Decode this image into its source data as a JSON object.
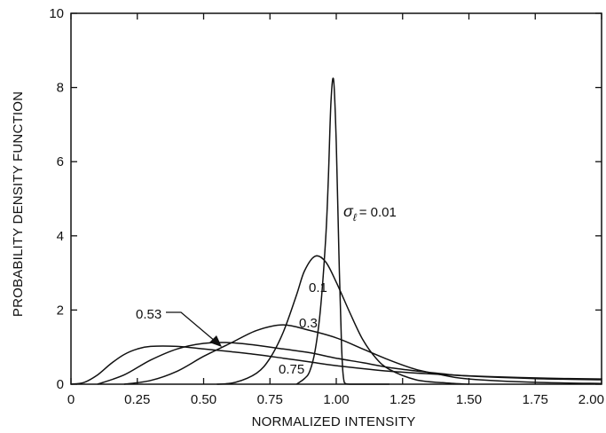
{
  "chart_data": {
    "type": "line",
    "title": "",
    "xlabel": "NORMALIZED INTENSITY",
    "ylabel": "PROBABILITY DENSITY FUNCTION",
    "xlim": [
      0,
      2.0
    ],
    "ylim": [
      0,
      10
    ],
    "x_ticks": [
      "0",
      "0.25",
      "0.50",
      "0.75",
      "1.00",
      "1.25",
      "1.50",
      "1.75",
      "2.00"
    ],
    "y_ticks": [
      "0",
      "2",
      "4",
      "6",
      "8",
      "10"
    ],
    "grid": false,
    "legend": "none",
    "annotation_prefix": "σ",
    "annotation_subscript": "ℓ",
    "series": [
      {
        "label": "= 0.01",
        "x": [
          0.85,
          0.88,
          0.9,
          0.92,
          0.94,
          0.96,
          0.97,
          0.98,
          0.99,
          1.0,
          1.01,
          1.02,
          1.03,
          1.05,
          1.1,
          1.2
        ],
        "y": [
          0.0,
          0.15,
          0.35,
          0.9,
          2.0,
          3.9,
          5.5,
          7.6,
          8.2,
          6.5,
          3.5,
          1.0,
          0.05,
          0.0,
          0.0,
          0.0
        ]
      },
      {
        "label": "0.1",
        "x": [
          0.55,
          0.62,
          0.7,
          0.75,
          0.8,
          0.85,
          0.88,
          0.92,
          0.96,
          1.0,
          1.05,
          1.1,
          1.15,
          1.2,
          1.3,
          1.4,
          1.5
        ],
        "y": [
          0.0,
          0.05,
          0.3,
          0.7,
          1.4,
          2.4,
          3.05,
          3.45,
          3.3,
          2.75,
          1.95,
          1.2,
          0.7,
          0.4,
          0.12,
          0.04,
          0.0
        ]
      },
      {
        "label": "0.3",
        "x": [
          0.2,
          0.3,
          0.4,
          0.5,
          0.6,
          0.7,
          0.8,
          0.9,
          1.0,
          1.1,
          1.2,
          1.3,
          1.4,
          1.5,
          1.75,
          2.0
        ],
        "y": [
          0.0,
          0.1,
          0.35,
          0.75,
          1.1,
          1.45,
          1.6,
          1.45,
          1.25,
          0.95,
          0.65,
          0.4,
          0.25,
          0.14,
          0.05,
          0.02
        ]
      },
      {
        "label": "0.53",
        "x": [
          0.1,
          0.2,
          0.3,
          0.4,
          0.5,
          0.6,
          0.7,
          0.8,
          0.9,
          1.0,
          1.1,
          1.2,
          1.3,
          1.4,
          1.5,
          1.75,
          2.0
        ],
        "y": [
          0.0,
          0.25,
          0.65,
          0.95,
          1.1,
          1.12,
          1.05,
          0.95,
          0.85,
          0.7,
          0.58,
          0.45,
          0.36,
          0.28,
          0.22,
          0.15,
          0.12
        ]
      },
      {
        "label": "0.75",
        "x": [
          0.0,
          0.05,
          0.1,
          0.15,
          0.2,
          0.25,
          0.3,
          0.4,
          0.5,
          0.6,
          0.7,
          0.8,
          0.9,
          1.0,
          1.2,
          1.4,
          1.6,
          1.8,
          2.0
        ],
        "y": [
          0.0,
          0.05,
          0.25,
          0.55,
          0.8,
          0.95,
          1.02,
          1.02,
          0.95,
          0.88,
          0.8,
          0.7,
          0.6,
          0.5,
          0.35,
          0.26,
          0.2,
          0.16,
          0.14
        ]
      }
    ]
  }
}
